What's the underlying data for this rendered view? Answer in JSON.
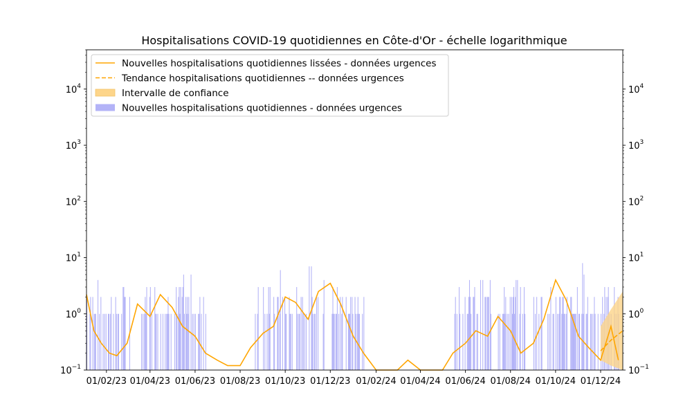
{
  "chart_data": {
    "type": "bar",
    "title": "Hospitalisations COVID-19 quotidiennes en Côte-d'Or - échelle logarithmique",
    "xlabel": "",
    "ylabel": "",
    "yscale": "log",
    "ylim": [
      0.1,
      50000
    ],
    "xlim": [
      "2023-01-05",
      "2024-12-31"
    ],
    "grid": false,
    "legend_position": "upper-left",
    "x_ticks": [
      {
        "date": "2023-02-01",
        "label": "01/02/23"
      },
      {
        "date": "2023-04-01",
        "label": "01/04/23"
      },
      {
        "date": "2023-06-01",
        "label": "01/06/23"
      },
      {
        "date": "2023-08-01",
        "label": "01/08/23"
      },
      {
        "date": "2023-10-01",
        "label": "01/10/23"
      },
      {
        "date": "2023-12-01",
        "label": "01/12/23"
      },
      {
        "date": "2024-02-01",
        "label": "01/02/24"
      },
      {
        "date": "2024-04-01",
        "label": "01/04/24"
      },
      {
        "date": "2024-06-01",
        "label": "01/06/24"
      },
      {
        "date": "2024-08-01",
        "label": "01/08/24"
      },
      {
        "date": "2024-10-01",
        "label": "01/10/24"
      },
      {
        "date": "2024-12-01",
        "label": "01/12/24"
      }
    ],
    "y_ticks": [
      {
        "value": 0.1,
        "base": "10",
        "exp": "−1"
      },
      {
        "value": 1,
        "base": "10",
        "exp": "0"
      },
      {
        "value": 10,
        "base": "10",
        "exp": "1"
      },
      {
        "value": 100,
        "base": "10",
        "exp": "2"
      },
      {
        "value": 1000,
        "base": "10",
        "exp": "3"
      },
      {
        "value": 10000,
        "base": "10",
        "exp": "4"
      }
    ],
    "legend": [
      {
        "label": "Nouvelles hospitalisations quotidiennes lissées - données urgences",
        "style": "line"
      },
      {
        "label": "Tendance hospitalisations quotidiennes -- données urgences",
        "style": "dashed"
      },
      {
        "label": "Intervalle de confiance",
        "style": "patch"
      },
      {
        "label": "Nouvelles hospitalisations quotidiennes - données urgences",
        "style": "bar"
      }
    ],
    "colors": {
      "smoothed": "#ffa500",
      "trend": "#ffa500",
      "interval": "#fdd58a",
      "bars": "#b3b3f7"
    },
    "series": [
      {
        "name": "Nouvelles hospitalisations quotidiennes - données urgences",
        "kind": "bar",
        "episodes": [
          {
            "start": "2023-01-05",
            "end": "2023-03-05",
            "max": 4
          },
          {
            "start": "2023-03-20",
            "end": "2023-06-15",
            "max": 6
          },
          {
            "start": "2023-08-20",
            "end": "2024-01-15",
            "max": 7
          },
          {
            "start": "2024-05-15",
            "end": "2024-08-20",
            "max": 4
          },
          {
            "start": "2024-09-01",
            "end": "2024-12-25",
            "max": 9
          }
        ]
      },
      {
        "name": "Nouvelles hospitalisations quotidiennes lissées - données urgences",
        "kind": "line",
        "x": [
          "2023-01-05",
          "2023-01-15",
          "2023-01-25",
          "2023-02-05",
          "2023-02-15",
          "2023-03-01",
          "2023-03-15",
          "2023-04-01",
          "2023-04-15",
          "2023-05-01",
          "2023-05-15",
          "2023-06-01",
          "2023-06-15",
          "2023-07-01",
          "2023-07-15",
          "2023-08-01",
          "2023-08-15",
          "2023-09-01",
          "2023-09-15",
          "2023-10-01",
          "2023-10-15",
          "2023-11-01",
          "2023-11-15",
          "2023-12-01",
          "2023-12-15",
          "2024-01-01",
          "2024-01-15",
          "2024-02-01",
          "2024-02-15",
          "2024-03-01",
          "2024-03-15",
          "2024-04-01",
          "2024-04-15",
          "2024-05-01",
          "2024-05-15",
          "2024-06-01",
          "2024-06-15",
          "2024-07-01",
          "2024-07-15",
          "2024-08-01",
          "2024-08-15",
          "2024-09-01",
          "2024-09-15",
          "2024-10-01",
          "2024-10-15",
          "2024-11-01",
          "2024-11-15",
          "2024-12-01",
          "2024-12-15",
          "2024-12-25"
        ],
        "y": [
          2.2,
          0.5,
          0.3,
          0.2,
          0.18,
          0.3,
          1.5,
          0.9,
          2.2,
          1.3,
          0.6,
          0.4,
          0.2,
          0.15,
          0.12,
          0.12,
          0.25,
          0.45,
          0.6,
          2.0,
          1.6,
          0.8,
          2.5,
          3.5,
          1.5,
          0.4,
          0.2,
          0.1,
          0.1,
          0.1,
          0.15,
          0.1,
          0.1,
          0.1,
          0.2,
          0.3,
          0.5,
          0.4,
          0.9,
          0.5,
          0.2,
          0.3,
          0.8,
          4.0,
          1.8,
          0.4,
          0.25,
          0.15,
          0.6,
          0.15
        ]
      },
      {
        "name": "Tendance hospitalisations quotidiennes -- données urgences",
        "kind": "dashed",
        "x": [
          "2024-12-01",
          "2024-12-15",
          "2024-12-31"
        ],
        "y": [
          0.22,
          0.34,
          0.5
        ],
        "lower": [
          0.15,
          0.12,
          0.1
        ],
        "upper": [
          0.6,
          1.2,
          2.5
        ]
      }
    ]
  }
}
